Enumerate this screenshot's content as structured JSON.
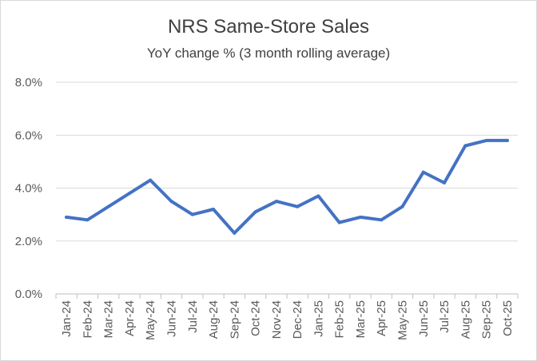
{
  "chart_data": {
    "type": "line",
    "title": "NRS Same-Store Sales",
    "subtitle": "YoY change % (3 month rolling average)",
    "xlabel": "",
    "ylabel": "",
    "categories": [
      "Jan-24",
      "Feb-24",
      "Mar-24",
      "Apr-24",
      "May-24",
      "Jun-24",
      "Jul-24",
      "Aug-24",
      "Sep-24",
      "Oct-24",
      "Nov-24",
      "Dec-24",
      "Jan-25",
      "Feb-25",
      "Mar-25",
      "Apr-25",
      "May-25",
      "Jun-25",
      "Jul-25",
      "Aug-25",
      "Sep-25",
      "Oct-25"
    ],
    "series": [
      {
        "values": [
          2.9,
          2.8,
          3.3,
          3.8,
          4.3,
          3.5,
          3.0,
          3.2,
          2.3,
          3.1,
          3.5,
          3.3,
          3.7,
          2.7,
          2.9,
          2.8,
          3.3,
          4.6,
          4.2,
          5.6,
          5.8,
          5.8
        ],
        "color": "#4472c4"
      }
    ],
    "ylim": [
      0,
      8
    ],
    "yticks": [
      "0.0%",
      "2.0%",
      "4.0%",
      "6.0%",
      "8.0%"
    ],
    "ytick_values": [
      0,
      2,
      4,
      6,
      8
    ],
    "grid": true,
    "legend": "none"
  }
}
